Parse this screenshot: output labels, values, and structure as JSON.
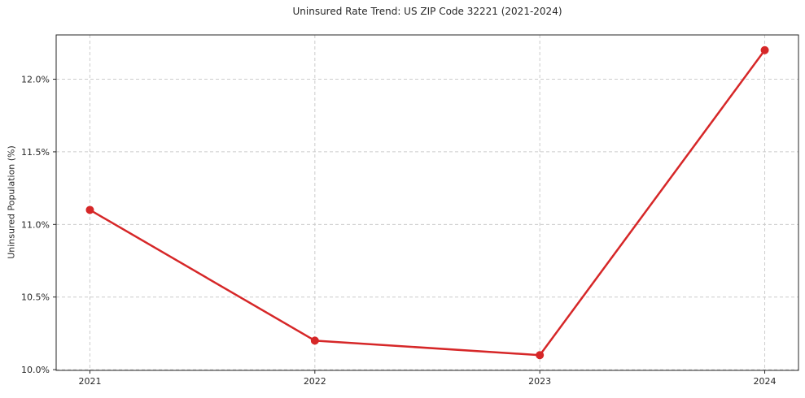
{
  "chart_data": {
    "type": "line",
    "title": "Uninsured Rate Trend: US ZIP Code 32221 (2021-2024)",
    "xlabel": "",
    "ylabel": "Uninsured Population (%)",
    "x": [
      2021,
      2022,
      2023,
      2024
    ],
    "x_tick_labels": [
      "2021",
      "2022",
      "2023",
      "2024"
    ],
    "values": [
      11.1,
      10.2,
      10.1,
      12.2
    ],
    "yticks": [
      10.0,
      10.5,
      11.0,
      11.5,
      12.0
    ],
    "ytick_labels": [
      "10.0%",
      "10.5%",
      "11.0%",
      "11.5%",
      "12.0%"
    ],
    "ylim": [
      9.995,
      12.305
    ],
    "xlim": [
      2020.85,
      2024.15
    ],
    "grid": true,
    "grid_style": "dashed",
    "legend": false,
    "line_color": "#d62728",
    "marker": "circle",
    "grid_color": "#cccccc",
    "axis_color": "#262626",
    "background_color": "#ffffff"
  }
}
